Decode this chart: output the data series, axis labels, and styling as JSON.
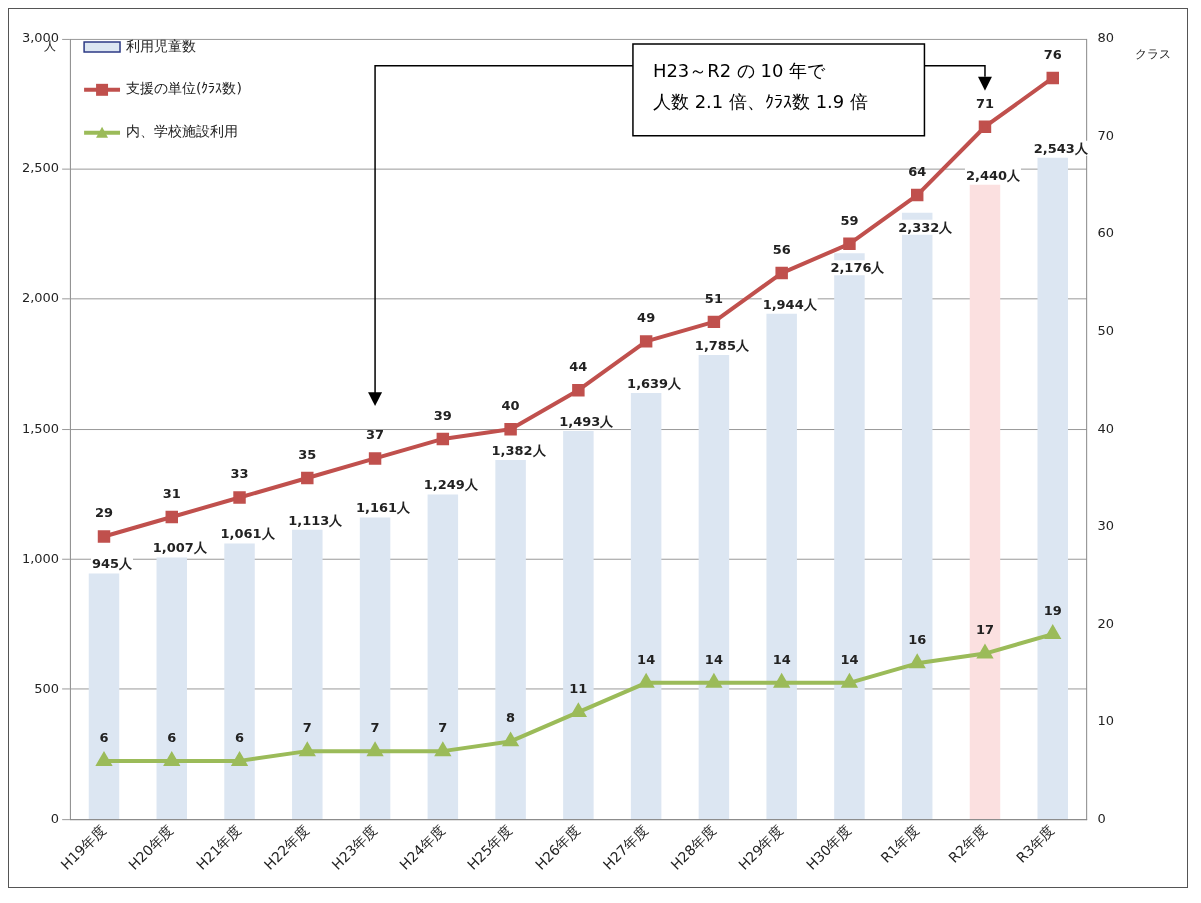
{
  "chart_data": {
    "type": "bar",
    "categories": [
      "H19年度",
      "H20年度",
      "H21年度",
      "H22年度",
      "H23年度",
      "H24年度",
      "H25年度",
      "H26年度",
      "H27年度",
      "H28年度",
      "H29年度",
      "H30年度",
      "R1年度",
      "R2年度",
      "R3年度"
    ],
    "ylabel": "人",
    "y2label": "クラス",
    "ylim": [
      0,
      3000
    ],
    "yticks": [
      {
        "value": 0,
        "label": "0"
      },
      {
        "value": 500,
        "label": "500"
      },
      {
        "value": 1000,
        "label": "1,000"
      },
      {
        "value": 1500,
        "label": "1,500"
      },
      {
        "value": 2000,
        "label": "2,000"
      },
      {
        "value": 2500,
        "label": "2,500"
      },
      {
        "value": 3000,
        "label": "3,000"
      }
    ],
    "y2lim": [
      0,
      80
    ],
    "y2ticks": [
      0,
      10,
      20,
      30,
      40,
      50,
      60,
      70,
      80
    ],
    "grid": "y",
    "legend": "top left",
    "data_labels": true,
    "series": [
      {
        "name": "利用児童数",
        "color": "#dce6f2",
        "colors": [
          "#dce6f2",
          "#dce6f2",
          "#dce6f2",
          "#dce6f2",
          "#dce6f2",
          "#dce6f2",
          "#dce6f2",
          "#dce6f2",
          "#dce6f2",
          "#dce6f2",
          "#dce6f2",
          "#dce6f2",
          "#dce6f2",
          "#fbe0e0",
          "#dce6f2"
        ],
        "values": [
          945,
          1007,
          1061,
          1113,
          1161,
          1249,
          1382,
          1493,
          1639,
          1785,
          1944,
          2176,
          2332,
          2440,
          2543
        ],
        "value_labels": [
          "945人",
          "1,007人",
          "1,061人",
          "1,113人",
          "1,161人",
          "1,249人",
          "1,382人",
          "1,493人",
          "1,639人",
          "1,785人",
          "1,944人",
          "2,176人",
          "2,332人",
          "2,440人",
          "2,543人"
        ]
      },
      {
        "name": "支援の単位(ｸﾗｽ数)",
        "type": "line",
        "axis": "y2",
        "color": "#c0504d",
        "marker": "square",
        "values": [
          29,
          31,
          33,
          35,
          37,
          39,
          40,
          44,
          49,
          51,
          56,
          59,
          64,
          71,
          76
        ]
      },
      {
        "name": "内、学校施設利用",
        "type": "line",
        "axis": "y2",
        "color": "#9bbb59",
        "marker": "triangle",
        "values": [
          6,
          6,
          6,
          7,
          7,
          7,
          8,
          11,
          14,
          14,
          14,
          14,
          16,
          17,
          19
        ]
      }
    ],
    "annotations": [
      "H23～R2 の 10 年で",
      "人数 2.1 倍、ｸﾗｽ数 1.9 倍"
    ]
  }
}
